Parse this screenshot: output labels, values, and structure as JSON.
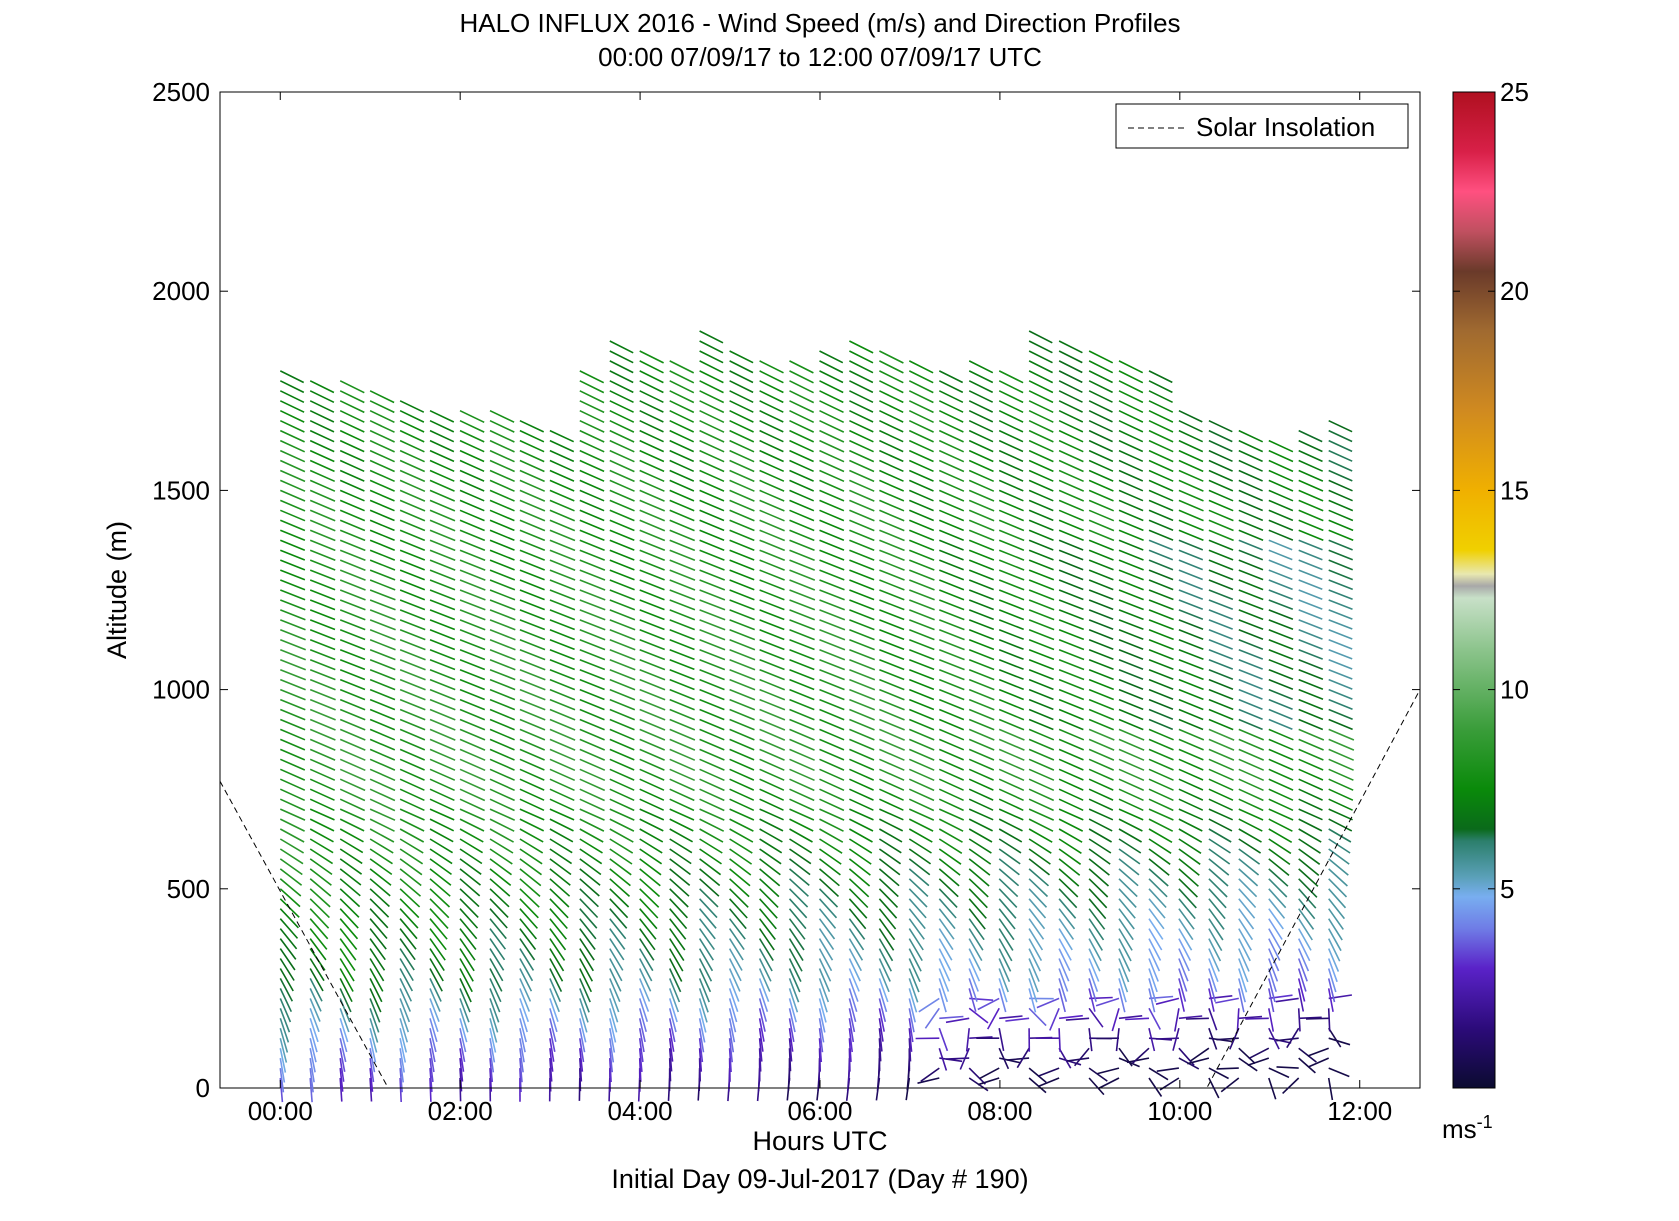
{
  "chart_data": {
    "type": "wind-barb-profile",
    "title": "HALO INFLUX 2016 - Wind Speed (m/s) and Direction Profiles",
    "subtitle": "00:00 07/09/17 to 12:00 07/09/17  UTC",
    "xlabel": "Hours UTC",
    "xlabel_sub": "Initial Day 09-Jul-2017 (Day # 190)",
    "ylabel": "Altitude (m)",
    "xlim_hours": [
      -0.67,
      12.67
    ],
    "ylim": [
      0,
      2500
    ],
    "x_ticks": [
      {
        "value": 0,
        "label": "00:00"
      },
      {
        "value": 2,
        "label": "02:00"
      },
      {
        "value": 4,
        "label": "04:00"
      },
      {
        "value": 6,
        "label": "06:00"
      },
      {
        "value": 8,
        "label": "08:00"
      },
      {
        "value": 10,
        "label": "10:00"
      },
      {
        "value": 12,
        "label": "12:00"
      }
    ],
    "y_ticks": [
      {
        "value": 0,
        "label": "0"
      },
      {
        "value": 500,
        "label": "500"
      },
      {
        "value": 1000,
        "label": "1000"
      },
      {
        "value": 1500,
        "label": "1500"
      },
      {
        "value": 2000,
        "label": "2000"
      },
      {
        "value": 2500,
        "label": "2500"
      }
    ],
    "legend": {
      "entries": [
        {
          "name": "Solar Insolation",
          "style": "dashed",
          "color": "#000000"
        }
      ],
      "placement": "top-right"
    },
    "solar_insolation": [
      {
        "x": -0.67,
        "y": 770
      },
      {
        "x": 1.2,
        "y": 0
      },
      {
        "x": 10.3,
        "y": 0
      },
      {
        "x": 12.67,
        "y": 1000
      }
    ],
    "colorbar": {
      "range": [
        0,
        25
      ],
      "ticks": [
        {
          "value": 5,
          "label": "5"
        },
        {
          "value": 10,
          "label": "10"
        },
        {
          "value": 15,
          "label": "15"
        },
        {
          "value": 20,
          "label": "20"
        },
        {
          "value": 25,
          "label": "25"
        }
      ],
      "unit_label": "ms",
      "unit_exponent": "-1",
      "stops": [
        {
          "v": 0,
          "c": "#0b0b30"
        },
        {
          "v": 1.5,
          "c": "#2c0b7a"
        },
        {
          "v": 3,
          "c": "#5a22c8"
        },
        {
          "v": 4,
          "c": "#6f7ce6"
        },
        {
          "v": 4.8,
          "c": "#78aef0"
        },
        {
          "v": 5.3,
          "c": "#5aa0b8"
        },
        {
          "v": 6.2,
          "c": "#2c7f6c"
        },
        {
          "v": 6.5,
          "c": "#0a6a1a"
        },
        {
          "v": 7.5,
          "c": "#0a8a0a"
        },
        {
          "v": 9,
          "c": "#3a9d3a"
        },
        {
          "v": 11,
          "c": "#8cc48c"
        },
        {
          "v": 12.3,
          "c": "#c8e0c8"
        },
        {
          "v": 12.6,
          "c": "#a8a8a8"
        },
        {
          "v": 12.9,
          "c": "#e8e8b0"
        },
        {
          "v": 13.5,
          "c": "#f0d000"
        },
        {
          "v": 15,
          "c": "#f0b000"
        },
        {
          "v": 17,
          "c": "#d08a20"
        },
        {
          "v": 19,
          "c": "#a06a30"
        },
        {
          "v": 20.5,
          "c": "#6a3a2a"
        },
        {
          "v": 21.5,
          "c": "#c05060"
        },
        {
          "v": 22.5,
          "c": "#ff5080"
        },
        {
          "v": 23.5,
          "c": "#d82048"
        },
        {
          "v": 25,
          "c": "#b01020"
        }
      ]
    },
    "barb_grid": {
      "x_start_hours": 0,
      "x_step_hours": 0.333,
      "columns": 36,
      "y_start_m": 25,
      "y_step_m": 25,
      "top_altitudes_m": [
        1820,
        1790,
        1780,
        1760,
        1740,
        1720,
        1720,
        1700,
        1680,
        1670,
        1800,
        1880,
        1860,
        1840,
        1900,
        1860,
        1840,
        1830,
        1860,
        1880,
        1850,
        1840,
        1820,
        1840,
        1800,
        1900,
        1880,
        1860,
        1840,
        1800,
        1720,
        1680,
        1650,
        1640,
        1660,
        1680
      ],
      "speed_profile_m_s": [
        {
          "alt_m": 0,
          "speed": 3
        },
        {
          "alt_m": 300,
          "speed": 7
        },
        {
          "alt_m": 800,
          "speed": 8.5
        },
        {
          "alt_m": 1400,
          "speed": 8
        },
        {
          "alt_m": 1800,
          "speed": 7.5
        }
      ],
      "direction_note": "barbs point roughly from WNW at upper levels, turning to northerly near surface"
    }
  }
}
